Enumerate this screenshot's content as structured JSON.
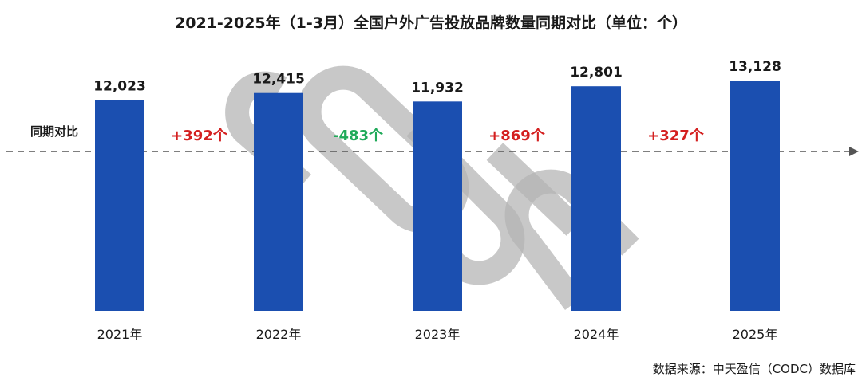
{
  "chart_data": {
    "type": "bar",
    "title": "2021-2025年（1-3月）全国户外广告投放品牌数量同期对比（单位：个）",
    "categories": [
      "2021年",
      "2022年",
      "2023年",
      "2024年",
      "2025年"
    ],
    "values": [
      12023,
      12415,
      11932,
      12801,
      13128
    ],
    "value_labels": [
      "12,023",
      "12,415",
      "11,932",
      "12,801",
      "13,128"
    ],
    "comparison": {
      "label": "同期对比",
      "items": [
        {
          "text": "+392个",
          "sign": "up"
        },
        {
          "text": "-483个",
          "sign": "down"
        },
        {
          "text": "+869个",
          "sign": "up"
        },
        {
          "text": "+327个",
          "sign": "up"
        }
      ]
    },
    "grid": false,
    "legend": "none",
    "source": "数据来源：中天盈信（CODC）数据库",
    "colors": {
      "bar": "#1b4fb0",
      "up": "#d42020",
      "down": "#1faa59",
      "reference_line": "#555555",
      "watermark": "#b3b3b3"
    },
    "watermark_text": "CODC"
  }
}
